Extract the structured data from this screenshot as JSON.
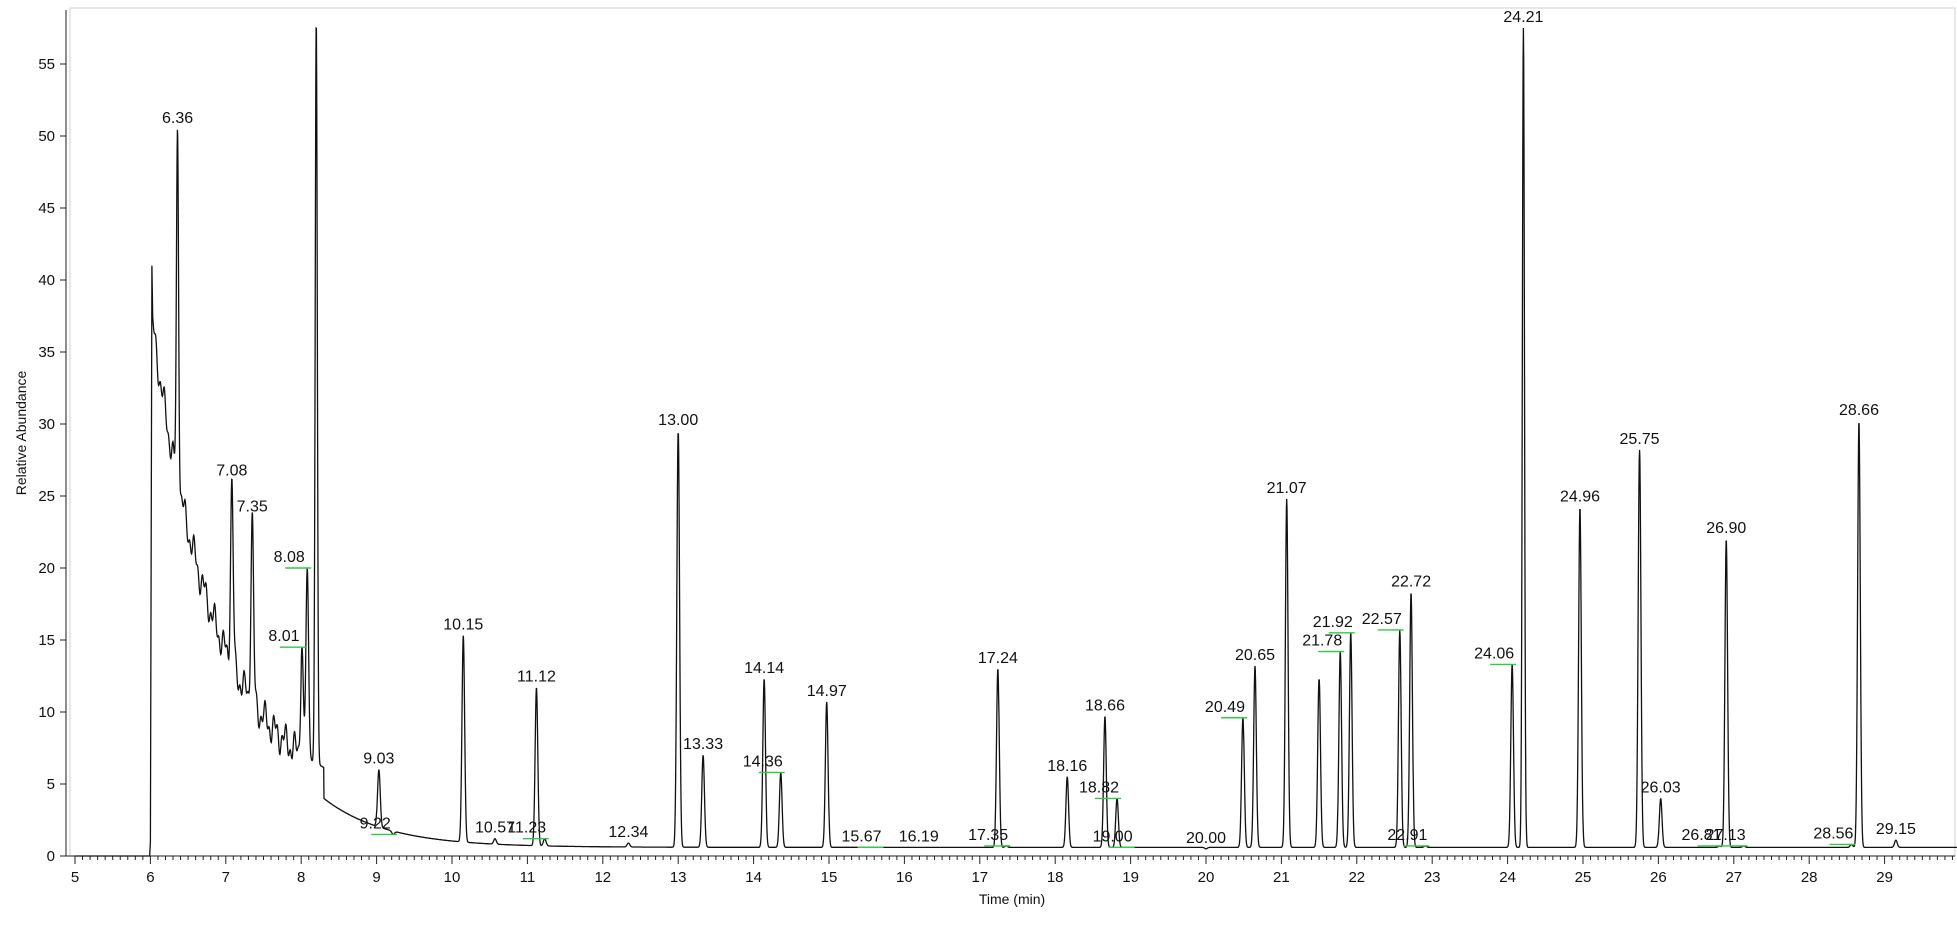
{
  "chart_data": {
    "type": "line",
    "title": "",
    "xlabel": "Time (min)",
    "ylabel": "Relative Abundance",
    "xlim": [
      5,
      30
    ],
    "ylim": [
      0,
      58
    ],
    "x_ticks": [
      5,
      6,
      7,
      8,
      9,
      10,
      11,
      12,
      13,
      14,
      15,
      16,
      17,
      18,
      19,
      20,
      21,
      22,
      23,
      24,
      25,
      26,
      27,
      28,
      29
    ],
    "y_ticks": [
      0,
      5,
      10,
      15,
      20,
      25,
      30,
      35,
      40,
      45,
      50,
      55
    ],
    "grid": false,
    "colors": {
      "trace": "#111111",
      "marker": "#2ecc40"
    },
    "peaks": [
      {
        "time": 6.36,
        "label": "6.36",
        "height": 50.5
      },
      {
        "time": 7.08,
        "label": "7.08",
        "height": 26
      },
      {
        "time": 7.35,
        "label": "7.35",
        "height": 23.5
      },
      {
        "time": 8.01,
        "label": "8.01",
        "height": 14.5,
        "marked": true
      },
      {
        "time": 8.08,
        "label": "8.08",
        "height": 20,
        "marked": true
      },
      {
        "time": 8.2,
        "label": "",
        "height": 58
      },
      {
        "time": 9.03,
        "label": "9.03",
        "height": 6
      },
      {
        "time": 9.22,
        "label": "9.22",
        "height": 1.5,
        "marked": true
      },
      {
        "time": 10.15,
        "label": "10.15",
        "height": 15.3
      },
      {
        "time": 10.57,
        "label": "10.57",
        "height": 1.2
      },
      {
        "time": 11.12,
        "label": "11.12",
        "height": 11.7
      },
      {
        "time": 11.23,
        "label": "11.23",
        "height": 1.2,
        "marked": true
      },
      {
        "time": 12.34,
        "label": "12.34",
        "height": 0.9
      },
      {
        "time": 13.0,
        "label": "13.00",
        "height": 29.5
      },
      {
        "time": 13.33,
        "label": "13.33",
        "height": 7
      },
      {
        "time": 14.14,
        "label": "14.14",
        "height": 12.3
      },
      {
        "time": 14.36,
        "label": "14.36",
        "height": 5.8,
        "marked": true
      },
      {
        "time": 14.97,
        "label": "14.97",
        "height": 10.7
      },
      {
        "time": 15.67,
        "label": "15.67",
        "height": 0.6,
        "marked": true
      },
      {
        "time": 16.19,
        "label": "16.19",
        "height": 0.6
      },
      {
        "time": 17.24,
        "label": "17.24",
        "height": 13
      },
      {
        "time": 17.35,
        "label": "17.35",
        "height": 0.7,
        "marked": true
      },
      {
        "time": 18.16,
        "label": "18.16",
        "height": 5.5
      },
      {
        "time": 18.66,
        "label": "18.66",
        "height": 9.7
      },
      {
        "time": 18.82,
        "label": "18.82",
        "height": 4,
        "marked": true
      },
      {
        "time": 19.0,
        "label": "19.00",
        "height": 0.6,
        "marked": true
      },
      {
        "time": 20.0,
        "label": "20.00",
        "height": 0.5
      },
      {
        "time": 20.49,
        "label": "20.49",
        "height": 9.6,
        "marked": true
      },
      {
        "time": 20.65,
        "label": "20.65",
        "height": 13.2
      },
      {
        "time": 21.07,
        "label": "21.07",
        "height": 24.8
      },
      {
        "time": 21.5,
        "label": "",
        "height": 12.3
      },
      {
        "time": 21.78,
        "label": "21.78",
        "height": 14.2,
        "marked": true
      },
      {
        "time": 21.92,
        "label": "21.92",
        "height": 15.5,
        "marked": true
      },
      {
        "time": 22.57,
        "label": "22.57",
        "height": 15.7,
        "marked": true
      },
      {
        "time": 22.72,
        "label": "22.72",
        "height": 18.3
      },
      {
        "time": 22.91,
        "label": "22.91",
        "height": 0.7,
        "marked": true
      },
      {
        "time": 24.06,
        "label": "24.06",
        "height": 13.3,
        "marked": true
      },
      {
        "time": 24.21,
        "label": "24.21",
        "height": 57.5
      },
      {
        "time": 24.96,
        "label": "24.96",
        "height": 24.2
      },
      {
        "time": 25.75,
        "label": "25.75",
        "height": 28.2
      },
      {
        "time": 26.03,
        "label": "26.03",
        "height": 4
      },
      {
        "time": 26.81,
        "label": "26.81",
        "height": 0.7,
        "marked": true
      },
      {
        "time": 26.9,
        "label": "26.90",
        "height": 22
      },
      {
        "time": 27.13,
        "label": "27.13",
        "height": 0.7,
        "marked": true
      },
      {
        "time": 28.56,
        "label": "28.56",
        "height": 0.8,
        "marked": true
      },
      {
        "time": 28.66,
        "label": "28.66",
        "height": 30.2
      },
      {
        "time": 29.15,
        "label": "29.15",
        "height": 1.1
      }
    ]
  }
}
